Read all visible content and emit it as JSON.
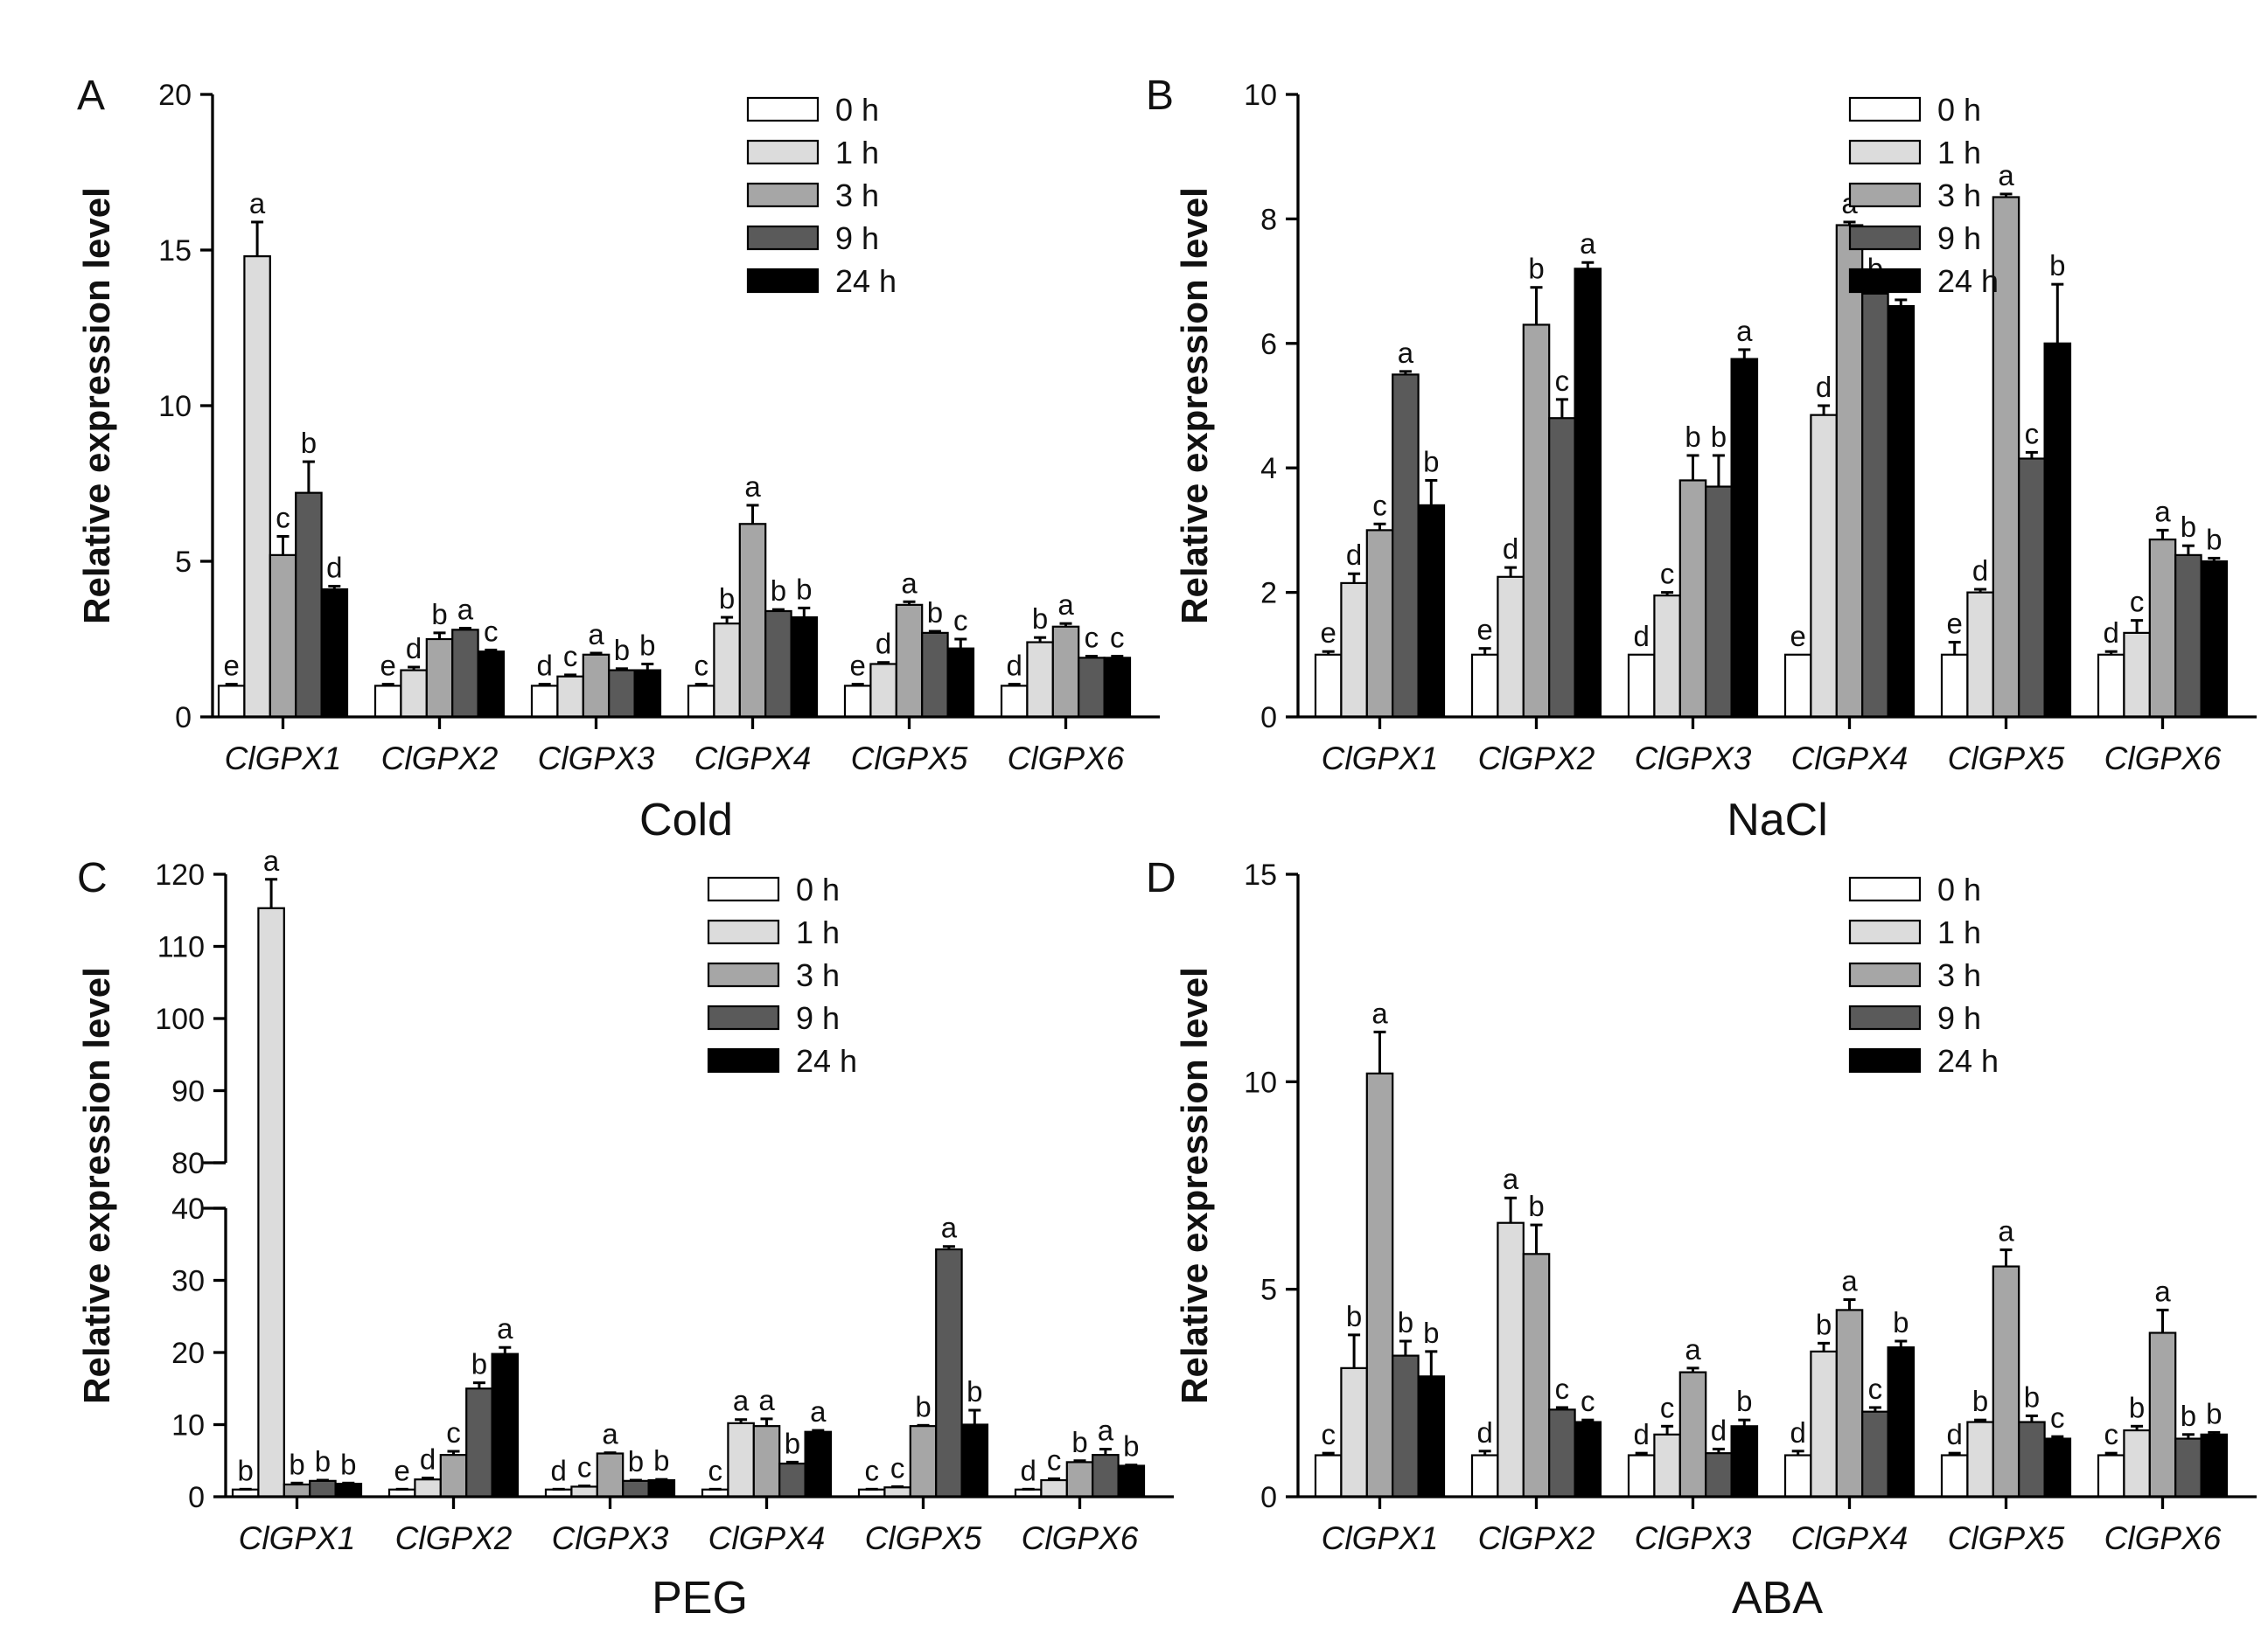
{
  "legend_colors": [
    "#ffffff",
    "#dcdcdc",
    "#a6a6a6",
    "#5a5a5a",
    "#000000"
  ],
  "chart_data": [
    {
      "type": "bar",
      "panel": "A",
      "xlabel": "Cold",
      "ylabel": "Relative expression level",
      "ylim": [
        0,
        20
      ],
      "yticks": [
        0,
        5,
        10,
        15,
        20
      ],
      "categories": [
        "ClGPX1",
        "ClGPX2",
        "ClGPX3",
        "ClGPX4",
        "ClGPX5",
        "ClGPX6"
      ],
      "legend": [
        "0 h",
        "1 h",
        "3 h",
        "9 h",
        "24 h"
      ],
      "series": [
        {
          "name": "0 h",
          "values": [
            1.0,
            1.0,
            1.0,
            1.0,
            1.0,
            1.0
          ],
          "errors": [
            0.05,
            0.05,
            0.05,
            0.05,
            0.05,
            0.05
          ],
          "labels": [
            "e",
            "e",
            "d",
            "c",
            "e",
            "d"
          ]
        },
        {
          "name": "1 h",
          "values": [
            14.8,
            1.5,
            1.3,
            3.0,
            1.7,
            2.4
          ],
          "errors": [
            1.1,
            0.1,
            0.05,
            0.2,
            0.05,
            0.15
          ],
          "labels": [
            "a",
            "d",
            "c",
            "b",
            "d",
            "b"
          ]
        },
        {
          "name": "3 h",
          "values": [
            5.2,
            2.5,
            2.0,
            6.2,
            3.6,
            2.9
          ],
          "errors": [
            0.6,
            0.2,
            0.05,
            0.6,
            0.1,
            0.1
          ],
          "labels": [
            "c",
            "b",
            "a",
            "a",
            "a",
            "a"
          ]
        },
        {
          "name": "9 h",
          "values": [
            7.2,
            2.8,
            1.5,
            3.4,
            2.7,
            1.9
          ],
          "errors": [
            1.0,
            0.05,
            0.05,
            0.05,
            0.05,
            0.05
          ],
          "labels": [
            "b",
            "a",
            "b",
            "b",
            "b",
            "c"
          ]
        },
        {
          "name": "24 h",
          "values": [
            4.1,
            2.1,
            1.5,
            3.2,
            2.2,
            1.9
          ],
          "errors": [
            0.1,
            0.05,
            0.2,
            0.3,
            0.3,
            0.05
          ],
          "labels": [
            "d",
            "c",
            "b",
            "b",
            "c",
            "c"
          ]
        }
      ]
    },
    {
      "type": "bar",
      "panel": "B",
      "xlabel": "NaCl",
      "ylabel": "Relative expression level",
      "ylim": [
        0,
        10
      ],
      "yticks": [
        0,
        2,
        4,
        6,
        8,
        10
      ],
      "categories": [
        "ClGPX1",
        "ClGPX2",
        "ClGPX3",
        "ClGPX4",
        "ClGPX5",
        "ClGPX6"
      ],
      "legend": [
        "0 h",
        "1 h",
        "3 h",
        "9 h",
        "24 h"
      ],
      "series": [
        {
          "name": "0 h",
          "values": [
            1.0,
            1.0,
            1.0,
            1.0,
            1.0,
            1.0
          ],
          "errors": [
            0.05,
            0.1,
            0.0,
            0.0,
            0.2,
            0.05
          ],
          "labels": [
            "e",
            "e",
            "d",
            "e",
            "e",
            "d"
          ]
        },
        {
          "name": "1 h",
          "values": [
            2.15,
            2.25,
            1.95,
            4.85,
            2.0,
            1.35
          ],
          "errors": [
            0.15,
            0.15,
            0.05,
            0.15,
            0.05,
            0.2
          ],
          "labels": [
            "d",
            "d",
            "c",
            "d",
            "d",
            "c"
          ]
        },
        {
          "name": "3 h",
          "values": [
            3.0,
            6.3,
            3.8,
            7.9,
            8.35,
            2.85
          ],
          "errors": [
            0.1,
            0.6,
            0.4,
            0.05,
            0.05,
            0.15
          ],
          "labels": [
            "c",
            "b",
            "b",
            "a",
            "a",
            "a"
          ]
        },
        {
          "name": "9 h",
          "values": [
            5.5,
            4.8,
            3.7,
            6.8,
            4.15,
            2.6
          ],
          "errors": [
            0.05,
            0.3,
            0.5,
            0.1,
            0.1,
            0.15
          ],
          "labels": [
            "a",
            "c",
            "b",
            "b",
            "c",
            "b"
          ]
        },
        {
          "name": "24 h",
          "values": [
            3.4,
            7.2,
            5.75,
            6.6,
            6.0,
            2.5
          ],
          "errors": [
            0.4,
            0.1,
            0.15,
            0.1,
            0.95,
            0.05
          ],
          "labels": [
            "b",
            "a",
            "a",
            "c",
            "b",
            "b"
          ]
        }
      ]
    },
    {
      "type": "bar",
      "panel": "C",
      "xlabel": "PEG",
      "ylabel": "Relative expression level",
      "y_axis_break": [
        40,
        80
      ],
      "ylim": [
        0,
        120
      ],
      "yticks": [
        0,
        10,
        20,
        30,
        40,
        80,
        90,
        100,
        110,
        120
      ],
      "categories": [
        "ClGPX1",
        "ClGPX2",
        "ClGPX3",
        "ClGPX4",
        "ClGPX5",
        "ClGPX6"
      ],
      "legend": [
        "0 h",
        "1 h",
        "3 h",
        "9 h",
        "24 h"
      ],
      "series": [
        {
          "name": "0 h",
          "values": [
            1.0,
            1.0,
            1.0,
            1.0,
            1.0,
            1.0
          ],
          "errors": [
            0.05,
            0.05,
            0.05,
            0.05,
            0.05,
            0.05
          ],
          "labels": [
            "b",
            "e",
            "d",
            "c",
            "c",
            "d"
          ]
        },
        {
          "name": "1 h",
          "values": [
            115.3,
            2.4,
            1.4,
            10.2,
            1.3,
            2.3
          ],
          "errors": [
            4.0,
            0.2,
            0.1,
            0.5,
            0.1,
            0.2
          ],
          "labels": [
            "a",
            "d",
            "c",
            "a",
            "c",
            "c"
          ]
        },
        {
          "name": "3 h",
          "values": [
            1.7,
            5.8,
            6.0,
            9.8,
            9.8,
            4.8
          ],
          "errors": [
            0.2,
            0.5,
            0.1,
            1.0,
            0.1,
            0.2
          ],
          "labels": [
            "b",
            "c",
            "a",
            "a",
            "b",
            "b"
          ]
        },
        {
          "name": "9 h",
          "values": [
            2.2,
            15.0,
            2.2,
            4.6,
            34.3,
            5.8
          ],
          "errors": [
            0.1,
            0.8,
            0.1,
            0.2,
            0.4,
            0.8
          ],
          "labels": [
            "b",
            "b",
            "b",
            "b",
            "a",
            "a"
          ]
        },
        {
          "name": "24 h",
          "values": [
            1.8,
            19.8,
            2.3,
            9.0,
            10.0,
            4.3
          ],
          "errors": [
            0.1,
            0.9,
            0.1,
            0.2,
            2.0,
            0.1
          ],
          "labels": [
            "b",
            "a",
            "b",
            "a",
            "b",
            "b"
          ]
        }
      ]
    },
    {
      "type": "bar",
      "panel": "D",
      "xlabel": "ABA",
      "ylabel": "Relative expression level",
      "ylim": [
        0,
        15
      ],
      "yticks": [
        0,
        5,
        10,
        15
      ],
      "categories": [
        "ClGPX1",
        "ClGPX2",
        "ClGPX3",
        "ClGPX4",
        "ClGPX5",
        "ClGPX6"
      ],
      "legend": [
        "0 h",
        "1 h",
        "3 h",
        "9 h",
        "24 h"
      ],
      "series": [
        {
          "name": "0 h",
          "values": [
            1.0,
            1.0,
            1.0,
            1.0,
            1.0,
            1.0
          ],
          "errors": [
            0.05,
            0.1,
            0.05,
            0.1,
            0.05,
            0.05
          ],
          "labels": [
            "c",
            "d",
            "d",
            "d",
            "d",
            "c"
          ]
        },
        {
          "name": "1 h",
          "values": [
            3.1,
            6.6,
            1.5,
            3.5,
            1.8,
            1.6
          ],
          "errors": [
            0.8,
            0.6,
            0.2,
            0.2,
            0.05,
            0.1
          ],
          "labels": [
            "b",
            "a",
            "c",
            "b",
            "b",
            "b"
          ]
        },
        {
          "name": "3 h",
          "values": [
            10.2,
            5.85,
            3.0,
            4.5,
            5.55,
            3.95
          ],
          "errors": [
            1.0,
            0.7,
            0.1,
            0.25,
            0.4,
            0.55
          ],
          "labels": [
            "a",
            "b",
            "a",
            "a",
            "a",
            "a"
          ]
        },
        {
          "name": "9 h",
          "values": [
            3.4,
            2.1,
            1.05,
            2.05,
            1.8,
            1.4
          ],
          "errors": [
            0.35,
            0.05,
            0.1,
            0.1,
            0.15,
            0.1
          ],
          "labels": [
            "b",
            "c",
            "d",
            "c",
            "b",
            "b"
          ]
        },
        {
          "name": "24 h",
          "values": [
            2.9,
            1.8,
            1.7,
            3.6,
            1.4,
            1.5
          ],
          "errors": [
            0.6,
            0.05,
            0.15,
            0.15,
            0.05,
            0.05
          ],
          "labels": [
            "b",
            "c",
            "b",
            "b",
            "c",
            "b"
          ]
        }
      ]
    }
  ]
}
